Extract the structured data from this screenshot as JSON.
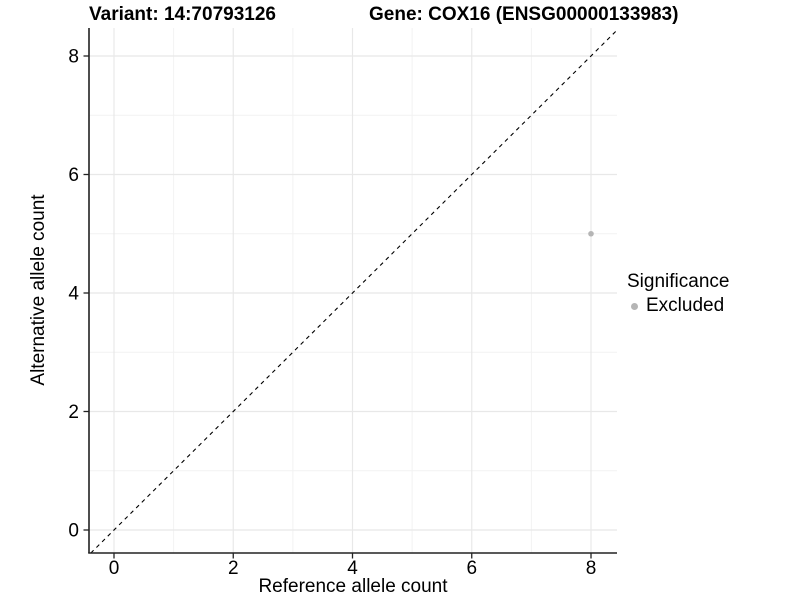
{
  "title": {
    "variant": "Variant: 14:70793126",
    "gene": "Gene: COX16 (ENSG00000133983)"
  },
  "axes": {
    "x_label": "Reference allele count",
    "y_label": "Alternative allele count"
  },
  "legend": {
    "title": "Significance",
    "items": [
      {
        "label": "Excluded",
        "color": "#b5b5b5"
      }
    ]
  },
  "colors": {
    "background": "#ffffff",
    "axis_line": "#222222",
    "grid_major": "#e8e8e8",
    "grid_minor": "#f2f2f2",
    "reference_line": "#000000",
    "point": "#b5b5b5",
    "text": "#000000"
  },
  "chart_data": {
    "type": "scatter",
    "title": "Variant: 14:70793126   Gene: COX16 (ENSG00000133983)",
    "xlabel": "Reference allele count",
    "ylabel": "Alternative allele count",
    "xlim": [
      -0.42,
      8.44
    ],
    "ylim": [
      -0.39,
      8.47
    ],
    "x_ticks": [
      0,
      2,
      4,
      6,
      8
    ],
    "y_ticks": [
      0,
      2,
      4,
      6,
      8
    ],
    "x_minor_ticks": [
      1,
      3,
      5,
      7
    ],
    "y_minor_ticks": [
      1,
      3,
      5,
      7
    ],
    "grid": "major+minor",
    "series": [
      {
        "name": "Excluded",
        "color": "#b5b5b5",
        "points": [
          {
            "x": 8,
            "y": 5
          }
        ]
      }
    ],
    "reference_line": {
      "type": "identity y=x",
      "style": "dashed",
      "color": "#000000"
    },
    "legend": {
      "title": "Significance",
      "position": "right",
      "entries": [
        "Excluded"
      ]
    }
  }
}
